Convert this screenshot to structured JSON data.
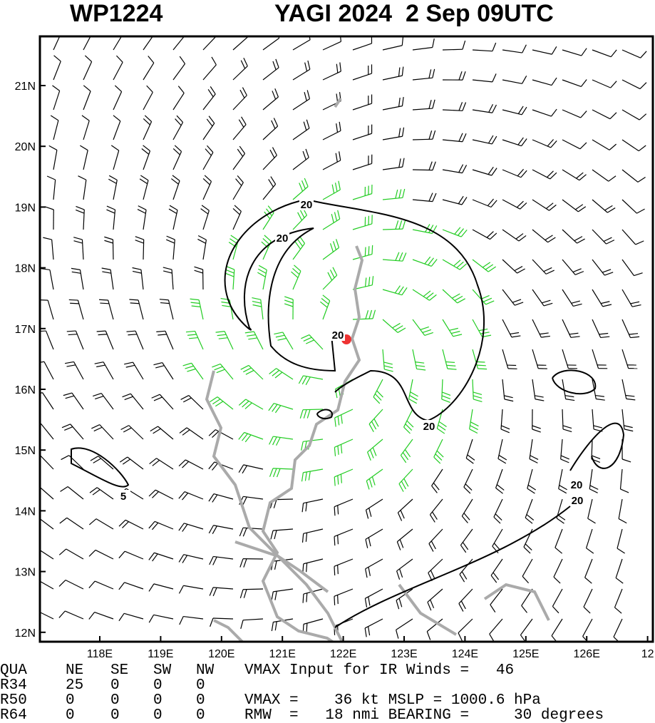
{
  "header": {
    "storm_id": "WP1224",
    "title": "YAGI 2024  2 Sep 09UTC"
  },
  "lat_labels": [
    "21N",
    "20N",
    "19N",
    "18N",
    "17N",
    "16N",
    "15N",
    "14N",
    "13N",
    "12N"
  ],
  "lon_labels": [
    "118E",
    "119E",
    "120E",
    "121E",
    "122E",
    "123E",
    "124E",
    "125E",
    "126E",
    "12"
  ],
  "contour_labels": [
    "20",
    "20",
    "20",
    "20",
    "20",
    "20",
    "5"
  ],
  "table": {
    "rows": [
      [
        "QUA",
        "NE",
        "SE",
        "SW",
        "NW",
        "VMAX Input for IR Winds =   46"
      ],
      [
        "R34",
        "25",
        "0",
        "0",
        "0"
      ],
      [
        "R50",
        "0",
        "0",
        "0",
        "0",
        "VMAX =    36 kt MSLP = 1000.6 hPa"
      ],
      [
        "R64",
        "0",
        "0",
        "0",
        "0",
        "RMW  =   18 nmi BEARING =     30 degrees"
      ]
    ]
  }
}
